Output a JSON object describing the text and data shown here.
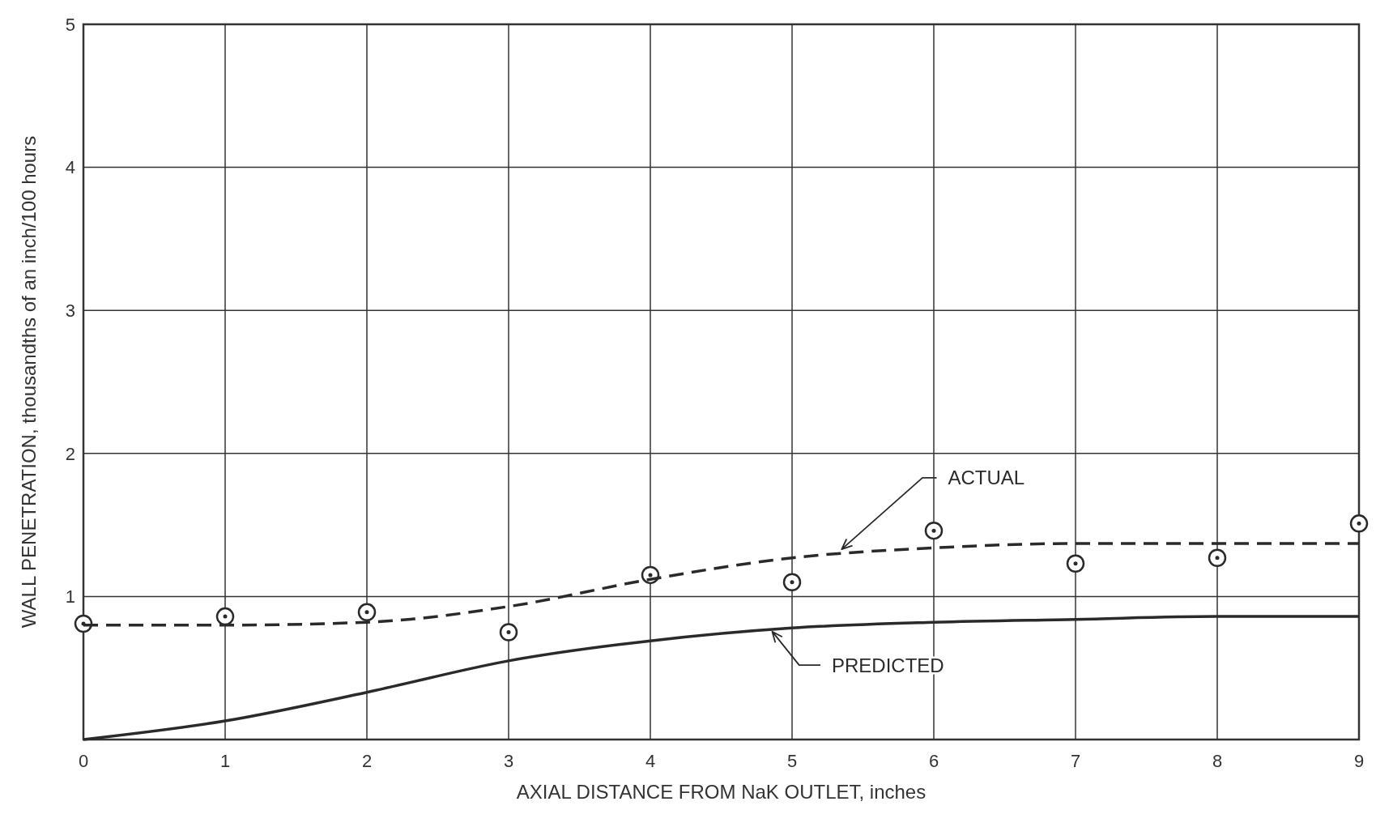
{
  "chart_data": {
    "type": "line",
    "xlabel": "AXIAL DISTANCE FROM NaK OUTLET, inches",
    "ylabel": "WALL PENETRATION, thousandths of an inch/100 hours",
    "xlim": [
      0,
      9
    ],
    "ylim": [
      0,
      5
    ],
    "xticks": [
      0,
      1,
      2,
      3,
      4,
      5,
      6,
      7,
      8,
      9
    ],
    "yticks": [
      {
        "value": 0,
        "label": null
      },
      1,
      2,
      3,
      4,
      5
    ],
    "grid": true,
    "series": [
      {
        "type": "scatter",
        "color": "#2a2a2a",
        "marker": "circle",
        "x": [
          0,
          1,
          2,
          3,
          4,
          5,
          6,
          7,
          8,
          9
        ],
        "values": [
          0.81,
          0.86,
          0.89,
          0.75,
          1.15,
          1.1,
          1.46,
          1.23,
          1.27,
          1.51
        ]
      },
      {
        "name": "ACTUAL",
        "color": "#2a2a2a",
        "line_style": "dashed",
        "marker": "none",
        "x": [
          0,
          1,
          2,
          3,
          4,
          5,
          6,
          7,
          8,
          9
        ],
        "values": [
          0.8,
          0.8,
          0.82,
          0.93,
          1.12,
          1.27,
          1.34,
          1.37,
          1.37,
          1.37
        ]
      },
      {
        "name": "PREDICTED",
        "color": "#2a2a2a",
        "line_style": "solid",
        "marker": "none",
        "x": [
          0,
          1,
          2,
          3,
          4,
          5,
          6,
          7,
          8,
          9
        ],
        "values": [
          0,
          0.13,
          0.33,
          0.55,
          0.69,
          0.78,
          0.82,
          0.84,
          0.86,
          0.86
        ]
      }
    ]
  }
}
